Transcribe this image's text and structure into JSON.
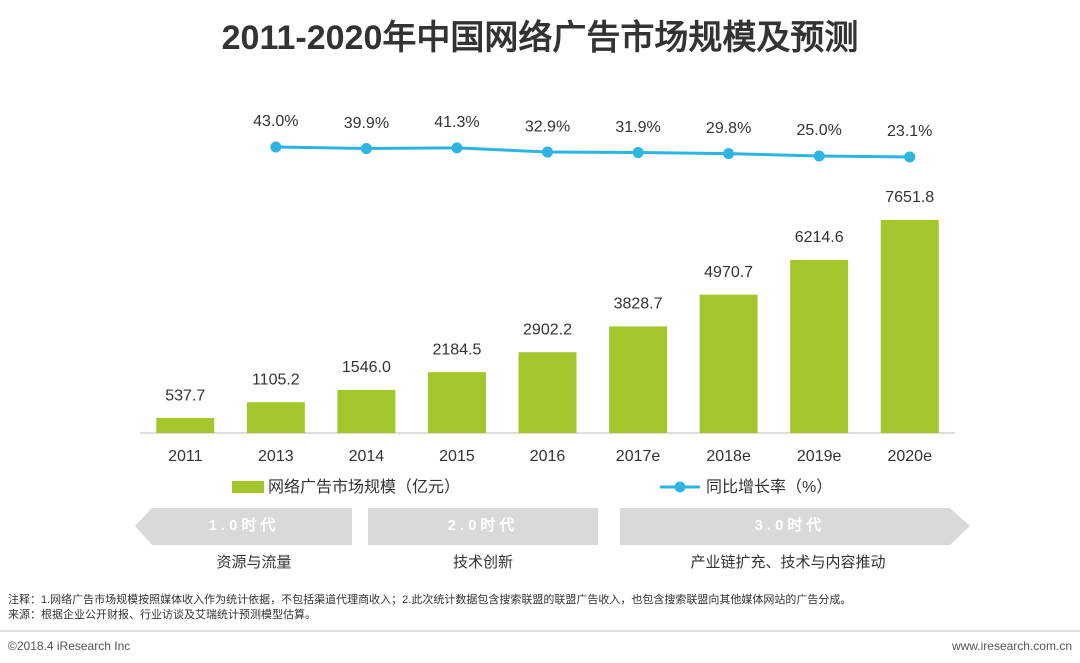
{
  "chart_data": {
    "type": "bar",
    "title": "2011-2020年中国网络广告市场规模及预测",
    "categories": [
      "2011",
      "2013",
      "2014",
      "2015",
      "2016",
      "2017e",
      "2018e",
      "2019e",
      "2020e"
    ],
    "series": [
      {
        "name": "网络广告市场规模（亿元）",
        "type": "bar",
        "color": "#a2c62c",
        "values": [
          537.7,
          1105.2,
          1546.0,
          2184.5,
          2902.2,
          3828.7,
          4970.7,
          6214.6,
          7651.8
        ],
        "value_labels": [
          "537.7",
          "1105.2",
          "1546.0",
          "2184.5",
          "2902.2",
          "3828.7",
          "4970.7",
          "6214.6",
          "7651.8"
        ]
      },
      {
        "name": "同比增长率（%）",
        "type": "line",
        "axis": "y2",
        "color": "#2bb5e0",
        "values": [
          null,
          43.0,
          39.9,
          41.3,
          32.9,
          31.9,
          29.8,
          25.0,
          23.1
        ],
        "value_labels": [
          null,
          "43.0%",
          "39.9%",
          "41.3%",
          "32.9%",
          "31.9%",
          "29.8%",
          "25.0%",
          "23.1%"
        ]
      }
    ],
    "legend": "bottom"
  },
  "eras": [
    {
      "label": "1.0时代",
      "desc": "资源与流量"
    },
    {
      "label": "2.0时代",
      "desc": "技术创新"
    },
    {
      "label": "3.0时代",
      "desc": "产业链扩充、技术与内容推动"
    }
  ],
  "notes": [
    "注释：1.网络广告市场规模按照媒体收入作为统计依据，不包括渠道代理商收入；2.此次统计数据包含搜索联盟的联盟广告收入，也包含搜索联盟向其他媒体网站的广告分成。",
    "来源：根据企业公开财报、行业访谈及艾瑞统计预测模型估算。"
  ],
  "footer": {
    "left": "©2018.4 iResearch Inc",
    "right": "www.iresearch.com.cn"
  }
}
